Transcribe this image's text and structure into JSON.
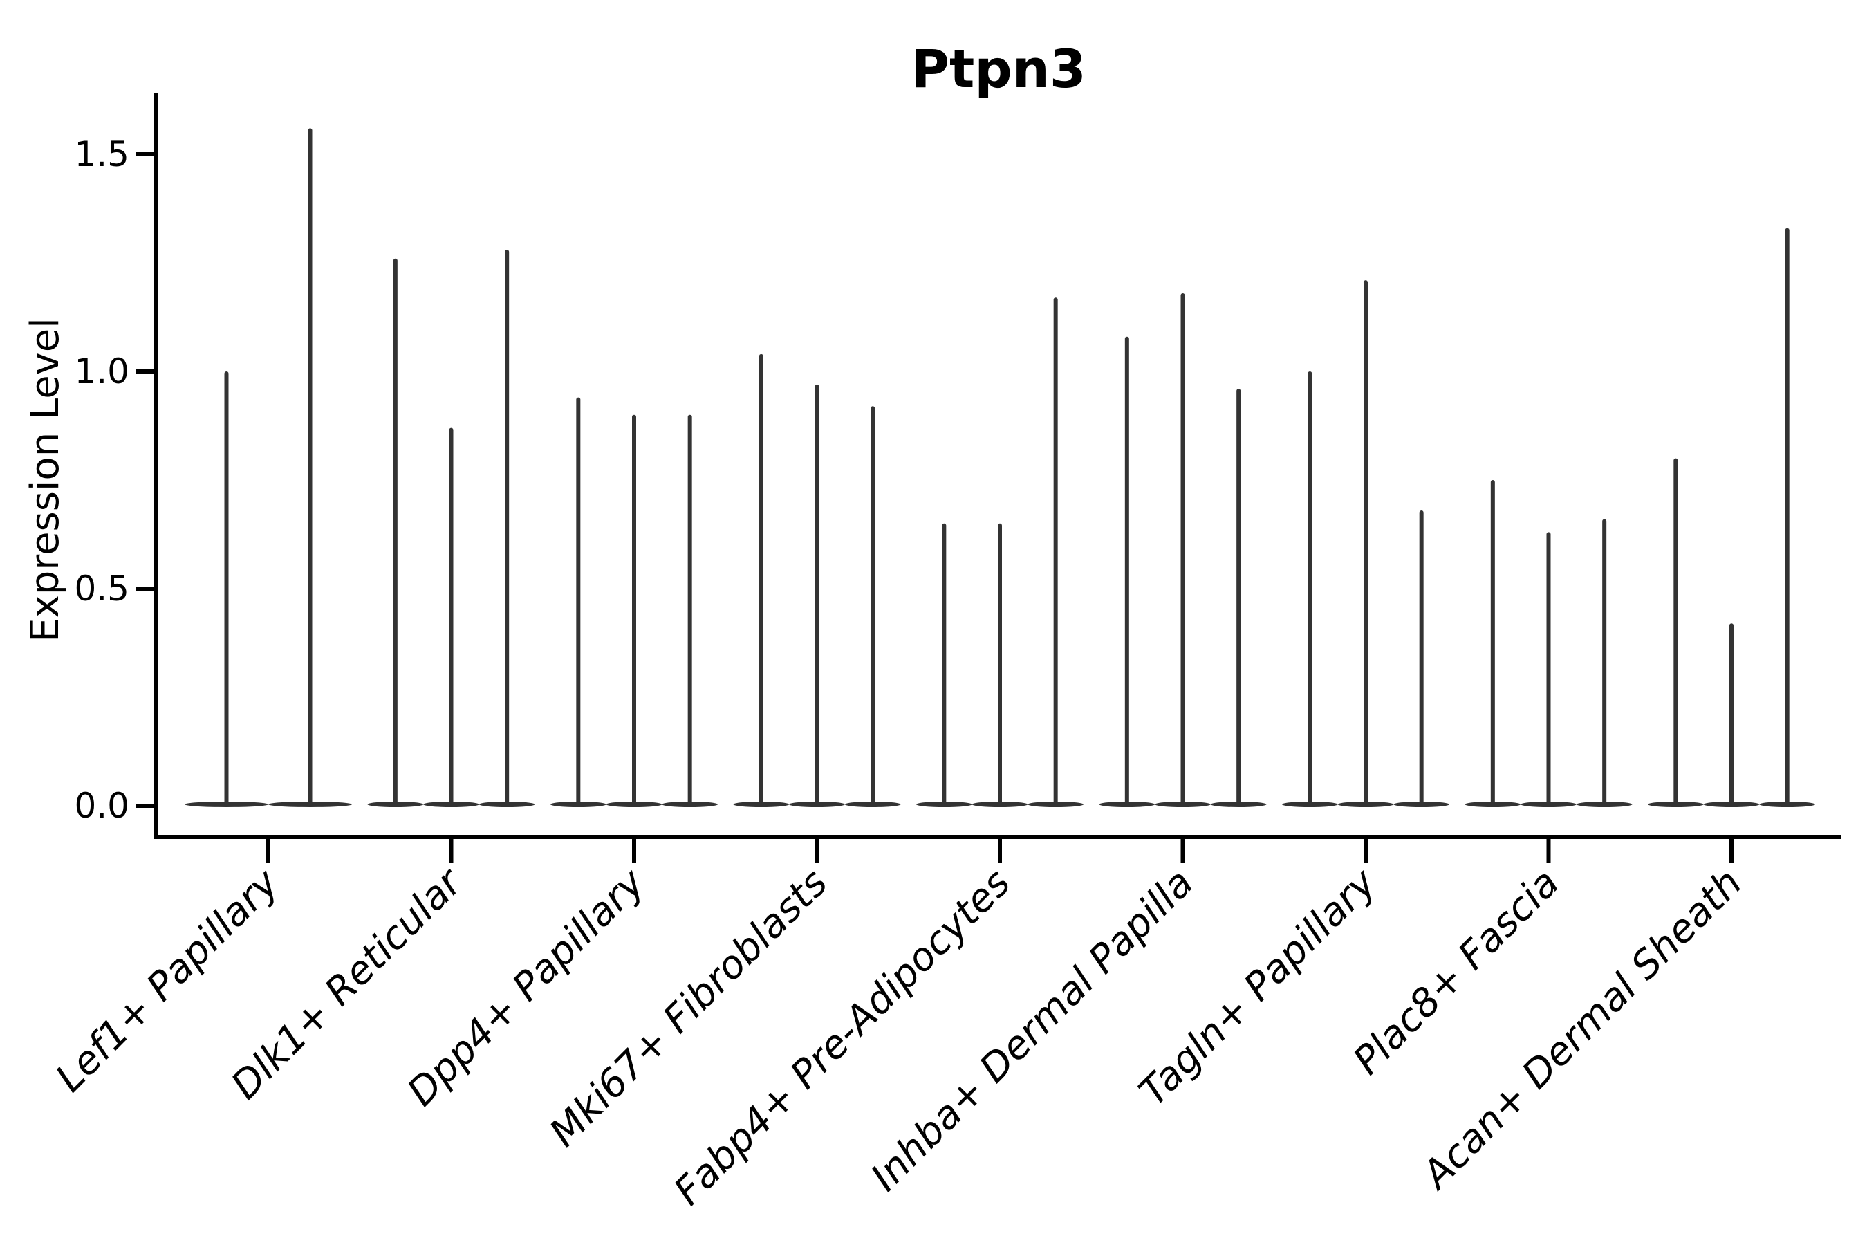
{
  "title": "Ptpn3",
  "axes": {
    "ylabel": "Expression Level",
    "ytick_labels": [
      "0.0",
      "0.5",
      "1.0",
      "1.5"
    ],
    "ytick_values": [
      0.0,
      0.5,
      1.0,
      1.5
    ]
  },
  "colors": {
    "violin": "#333333",
    "axis": "#000000",
    "text": "#000000",
    "background": "#ffffff"
  },
  "chart_data": {
    "type": "violin",
    "title": "Ptpn3",
    "xlabel": "",
    "ylabel": "Expression Level",
    "ylim": [
      0,
      1.64
    ],
    "yticks": [
      0.0,
      0.5,
      1.0,
      1.5
    ],
    "grid": false,
    "legend": "none",
    "note": "Each category shows very thin spike-like violins flattened at expression 0; value recorded is the maximum expression (spike tip) of each violin, left to right.",
    "categories": [
      {
        "label": "Lef1+ Papillary",
        "violin_maxima": [
          1.0,
          1.56
        ]
      },
      {
        "label": "Dlk1+ Reticular",
        "violin_maxima": [
          1.26,
          0.87,
          1.28
        ]
      },
      {
        "label": "Dpp4+ Papillary",
        "violin_maxima": [
          0.94,
          0.9,
          0.9
        ]
      },
      {
        "label": "Mki67+ Fibroblasts",
        "violin_maxima": [
          1.04,
          0.97,
          0.92
        ]
      },
      {
        "label": "Fabp4+ Pre-Adipocytes",
        "violin_maxima": [
          0.65,
          0.65,
          1.17
        ]
      },
      {
        "label": "Inhba+ Dermal Papilla",
        "violin_maxima": [
          1.08,
          1.18,
          0.96
        ]
      },
      {
        "label": "Tagln+ Papillary",
        "violin_maxima": [
          1.0,
          1.21,
          0.68
        ]
      },
      {
        "label": "Plac8+ Fascia",
        "violin_maxima": [
          0.75,
          0.63,
          0.66
        ]
      },
      {
        "label": "Acan+ Dermal Sheath",
        "violin_maxima": [
          0.8,
          0.42,
          1.33
        ]
      }
    ]
  }
}
